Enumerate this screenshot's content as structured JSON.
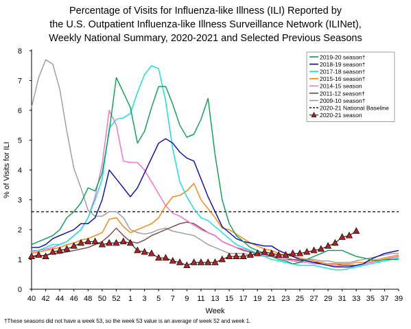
{
  "title_lines": [
    "Percentage of Visits for Influenza-like Illness (ILI) Reported by",
    "the U.S. Outpatient Influenza-like Illness Surveillance Network (ILINet),",
    "Weekly National Summary, 2020-2021 and Selected Previous Seasons"
  ],
  "footnote": "†These seasons did not have a week 53, so the week 53 value is an average of week 52 and week 1.",
  "chart_data": {
    "type": "line",
    "xlabel": "Week",
    "ylabel": "% of Visits for ILI",
    "ylim": [
      0,
      8
    ],
    "yticks": [
      0,
      1,
      2,
      3,
      4,
      5,
      6,
      7,
      8
    ],
    "x_tick_labels": [
      "40",
      "42",
      "44",
      "46",
      "48",
      "50",
      "52",
      "1",
      "3",
      "5",
      "7",
      "9",
      "11",
      "13",
      "15",
      "17",
      "19",
      "21",
      "23",
      "25",
      "27",
      "29",
      "31",
      "33",
      "35",
      "37",
      "39"
    ],
    "weeks": [
      "40",
      "41",
      "42",
      "43",
      "44",
      "45",
      "46",
      "47",
      "48",
      "49",
      "50",
      "51",
      "52",
      "53",
      "1",
      "2",
      "3",
      "4",
      "5",
      "6",
      "7",
      "8",
      "9",
      "10",
      "11",
      "12",
      "13",
      "14",
      "15",
      "16",
      "17",
      "18",
      "19",
      "20",
      "21",
      "22",
      "23",
      "24",
      "25",
      "26",
      "27",
      "28",
      "29",
      "30",
      "31",
      "32",
      "33",
      "34",
      "35",
      "36",
      "37",
      "38",
      "39"
    ],
    "baseline": {
      "name": "2020-21 National Baseline",
      "value": 2.6,
      "color": "#000000"
    },
    "legend_position": "top-right",
    "series": [
      {
        "name": "2019-20 season†",
        "color": "#00a04b",
        "values": [
          1.5,
          1.6,
          1.7,
          1.8,
          2.0,
          2.4,
          2.6,
          2.9,
          3.4,
          3.3,
          3.9,
          5.3,
          7.1,
          6.6,
          6.1,
          4.9,
          5.3,
          6.1,
          6.8,
          6.8,
          6.2,
          5.5,
          5.1,
          5.2,
          5.7,
          6.4,
          4.5,
          3.0,
          2.2,
          1.8,
          1.6,
          1.4,
          1.3,
          1.2,
          1.1,
          1.0,
          0.95,
          0.85,
          0.9,
          1.0,
          1.1,
          1.2,
          1.3,
          1.3,
          1.3,
          1.2,
          1.1,
          1.05,
          1.0,
          0.95,
          1.0,
          1.0,
          1.0
        ]
      },
      {
        "name": "2018-19 season†",
        "color": "#0000cc",
        "values": [
          1.4,
          1.4,
          1.5,
          1.7,
          1.8,
          1.9,
          2.0,
          2.2,
          2.2,
          2.4,
          3.0,
          4.0,
          3.7,
          3.4,
          3.1,
          3.4,
          3.9,
          4.4,
          4.9,
          5.05,
          4.9,
          4.6,
          4.4,
          4.3,
          3.7,
          3.1,
          2.6,
          2.1,
          1.9,
          1.7,
          1.6,
          1.55,
          1.5,
          1.45,
          1.45,
          1.3,
          1.2,
          1.1,
          1.0,
          0.95,
          0.9,
          0.85,
          0.8,
          0.75,
          0.75,
          0.75,
          0.8,
          0.85,
          1.0,
          1.1,
          1.2,
          1.25,
          1.3
        ]
      },
      {
        "name": "2017-18 season†",
        "color": "#00e5e5",
        "values": [
          1.3,
          1.3,
          1.4,
          1.5,
          1.5,
          1.6,
          1.8,
          2.0,
          2.4,
          3.0,
          3.7,
          5.4,
          5.7,
          5.75,
          5.9,
          6.6,
          7.2,
          7.5,
          7.4,
          6.3,
          4.7,
          3.6,
          3.1,
          2.7,
          2.4,
          2.3,
          2.1,
          1.9,
          1.7,
          1.5,
          1.4,
          1.3,
          1.2,
          1.1,
          1.0,
          0.95,
          0.9,
          0.85,
          0.8,
          0.8,
          0.8,
          0.75,
          0.7,
          0.65,
          0.65,
          0.7,
          0.75,
          0.8,
          0.85,
          0.9,
          0.95,
          1.0,
          1.05
        ]
      },
      {
        "name": "2015-16 season†",
        "color": "#ff7f00",
        "values": [
          1.2,
          1.25,
          1.3,
          1.35,
          1.4,
          1.5,
          1.55,
          1.65,
          1.7,
          1.8,
          1.9,
          2.35,
          2.4,
          2.1,
          1.9,
          2.0,
          2.1,
          2.2,
          2.4,
          2.8,
          3.1,
          3.15,
          3.3,
          3.55,
          3.0,
          2.7,
          2.4,
          2.05,
          2.0,
          1.85,
          1.7,
          1.55,
          1.45,
          1.35,
          1.3,
          1.2,
          1.15,
          1.1,
          1.05,
          1.0,
          0.95,
          0.9,
          0.85,
          0.85,
          0.85,
          0.85,
          0.9,
          0.9,
          0.95,
          1.0,
          1.05,
          1.1,
          1.15
        ]
      },
      {
        "name": "2014-15 season",
        "color": "#ff66cc",
        "values": [
          1.25,
          1.3,
          1.35,
          1.4,
          1.5,
          1.6,
          1.8,
          2.0,
          2.4,
          3.1,
          4.2,
          6.0,
          5.5,
          4.3,
          4.25,
          4.25,
          4.0,
          3.6,
          3.2,
          2.8,
          2.55,
          2.45,
          2.3,
          2.15,
          2.0,
          1.9,
          1.8,
          1.6,
          1.5,
          1.4,
          1.35,
          1.3,
          1.2,
          1.15,
          1.1,
          1.05,
          1.0,
          0.95,
          0.9,
          0.9,
          0.85,
          0.85,
          0.8,
          0.8,
          0.75,
          0.75,
          0.8,
          0.85,
          0.9,
          0.95,
          1.0,
          1.05,
          1.1
        ]
      },
      {
        "name": "2011-12 season†",
        "color": "#7f3f3f",
        "values": [
          1.1,
          1.1,
          1.15,
          1.2,
          1.2,
          1.25,
          1.3,
          1.35,
          1.4,
          1.5,
          1.6,
          1.8,
          2.05,
          1.8,
          1.6,
          1.55,
          1.65,
          1.8,
          1.9,
          2.0,
          2.1,
          2.2,
          2.25,
          2.2,
          2.05,
          1.9,
          1.8,
          1.6,
          1.5,
          1.4,
          1.3,
          1.25,
          1.2,
          1.15,
          1.1,
          1.05,
          1.0,
          1.0,
          0.95,
          0.95,
          0.9,
          0.9,
          0.85,
          0.85,
          0.8,
          0.8,
          0.8,
          0.85,
          0.9,
          0.95,
          1.0,
          1.05,
          1.1
        ]
      },
      {
        "name": "2009-10 season†",
        "color": "#999999",
        "values": [
          6.1,
          7.1,
          7.7,
          7.55,
          6.7,
          5.3,
          4.05,
          3.4,
          2.65,
          2.45,
          2.45,
          2.6,
          2.6,
          2.4,
          2.0,
          1.9,
          1.85,
          1.9,
          2.0,
          2.05,
          1.95,
          1.9,
          1.85,
          1.8,
          1.65,
          1.5,
          1.4,
          1.3,
          1.2,
          1.2,
          1.2,
          1.15,
          1.15,
          1.1,
          1.1,
          1.1,
          1.05,
          1.0,
          1.0,
          1.0,
          1.0,
          0.95,
          0.95,
          0.9,
          0.9,
          0.9,
          0.95,
          1.0,
          1.05,
          1.1,
          1.15,
          1.2,
          1.2
        ]
      }
    ],
    "current": {
      "name": "2020-21 season",
      "color": "#b22222",
      "values": [
        1.1,
        1.15,
        1.1,
        1.25,
        1.3,
        1.35,
        1.45,
        1.55,
        1.6,
        1.6,
        1.5,
        1.55,
        1.55,
        1.6,
        1.55,
        1.3,
        1.25,
        1.2,
        1.05,
        1.05,
        0.95,
        0.9,
        0.8,
        0.9,
        0.9,
        0.9,
        0.9,
        1.0,
        1.1,
        1.1,
        1.1,
        1.15,
        1.2,
        1.25,
        1.2,
        1.15,
        1.15,
        1.2,
        1.2,
        1.25,
        1.3,
        1.35,
        1.45,
        1.55,
        1.75,
        1.8,
        1.95
      ]
    },
    "legend_entries": [
      {
        "label": "2019-20 season†",
        "style": "line",
        "color": "#00a04b"
      },
      {
        "label": "2018-19 season†",
        "style": "line",
        "color": "#0000cc"
      },
      {
        "label": "2017-18 season†",
        "style": "line",
        "color": "#00e5e5"
      },
      {
        "label": "2015-16 season†",
        "style": "line",
        "color": "#ff7f00"
      },
      {
        "label": "2014-15 season",
        "style": "line",
        "color": "#ff66cc"
      },
      {
        "label": "2011-12 season†",
        "style": "line",
        "color": "#7f3f3f"
      },
      {
        "label": "2009-10 season†",
        "style": "line",
        "color": "#999999"
      },
      {
        "label": "2020-21 National Baseline",
        "style": "dashed",
        "color": "#000000"
      },
      {
        "label": "2020-21 season",
        "style": "triangle",
        "color": "#b22222"
      }
    ]
  }
}
